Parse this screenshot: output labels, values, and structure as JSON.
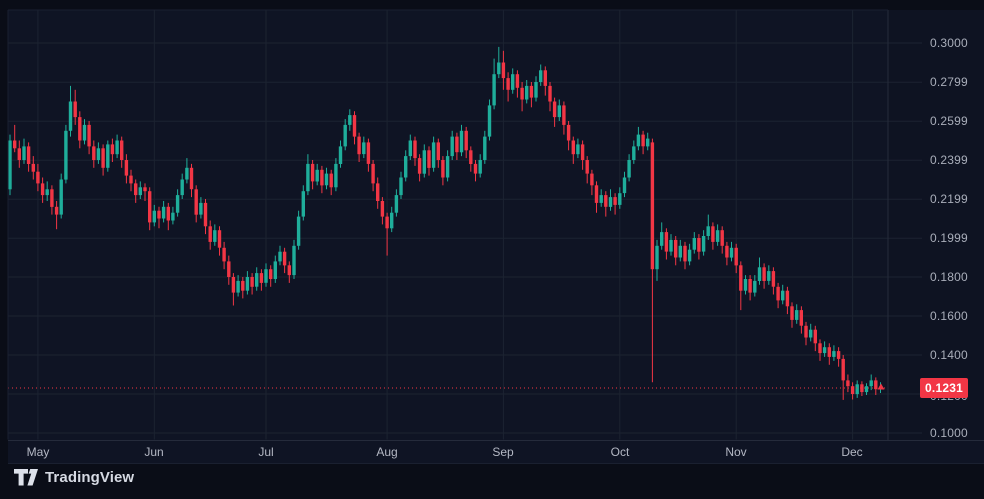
{
  "branding": {
    "logo_text": "TradingView",
    "logo_glyph": "tv-mark"
  },
  "colors": {
    "page_bg": "#0a0d17",
    "pane_bg": "#0f1424",
    "grid": "#1c2331",
    "border": "#252b3b",
    "axis_text": "#a9aeba",
    "up": "#1fae9b",
    "down": "#f23645",
    "price_line": "#f23645",
    "badge_bg": "#f23645",
    "badge_text": "#ffffff"
  },
  "price_axis": {
    "last_price_label": "0.1231",
    "labels": [
      {
        "text": "0.3000",
        "price": 0.3
      },
      {
        "text": "0.2799",
        "price": 0.2799
      },
      {
        "text": "0.2599",
        "price": 0.2599
      },
      {
        "text": "0.2399",
        "price": 0.2399
      },
      {
        "text": "0.2199",
        "price": 0.2199
      },
      {
        "text": "0.1999",
        "price": 0.1999
      },
      {
        "text": "0.1800",
        "price": 0.18
      },
      {
        "text": "0.1600",
        "price": 0.16
      },
      {
        "text": "0.1400",
        "price": 0.14
      },
      {
        "text": "0.1200",
        "price": 0.12
      },
      {
        "text": "0.1000",
        "price": 0.1
      }
    ]
  },
  "time_axis": {
    "months": [
      {
        "label": "May",
        "candle_index": 6
      },
      {
        "label": "Jun",
        "candle_index": 31
      },
      {
        "label": "Jul",
        "candle_index": 55
      },
      {
        "label": "Aug",
        "candle_index": 81
      },
      {
        "label": "Sep",
        "candle_index": 106
      },
      {
        "label": "Oct",
        "candle_index": 131
      },
      {
        "label": "Nov",
        "candle_index": 156
      },
      {
        "label": "Dec",
        "candle_index": 181
      }
    ]
  },
  "chart_data": {
    "type": "candlestick",
    "title": "",
    "ylabel": "price",
    "price_range": [
      0.1,
      0.3
    ],
    "grid": true,
    "legend_position": "none",
    "last_price": 0.1231,
    "candles_format": [
      "open",
      "high",
      "low",
      "close"
    ],
    "candles": [
      [
        0.225,
        0.253,
        0.222,
        0.25
      ],
      [
        0.25,
        0.258,
        0.244,
        0.246
      ],
      [
        0.246,
        0.25,
        0.236,
        0.24
      ],
      [
        0.24,
        0.251,
        0.238,
        0.247
      ],
      [
        0.247,
        0.249,
        0.234,
        0.238
      ],
      [
        0.238,
        0.242,
        0.23,
        0.234
      ],
      [
        0.234,
        0.238,
        0.224,
        0.228
      ],
      [
        0.228,
        0.231,
        0.218,
        0.222
      ],
      [
        0.222,
        0.229,
        0.219,
        0.225
      ],
      [
        0.225,
        0.227,
        0.212,
        0.216
      ],
      [
        0.216,
        0.219,
        0.2045,
        0.212
      ],
      [
        0.212,
        0.233,
        0.21,
        0.23
      ],
      [
        0.23,
        0.258,
        0.228,
        0.255
      ],
      [
        0.255,
        0.278,
        0.252,
        0.27
      ],
      [
        0.27,
        0.276,
        0.258,
        0.262
      ],
      [
        0.262,
        0.265,
        0.246,
        0.25
      ],
      [
        0.25,
        0.261,
        0.248,
        0.258
      ],
      [
        0.258,
        0.26,
        0.243,
        0.247
      ],
      [
        0.247,
        0.25,
        0.236,
        0.24
      ],
      [
        0.24,
        0.249,
        0.238,
        0.246
      ],
      [
        0.246,
        0.248,
        0.232,
        0.236
      ],
      [
        0.236,
        0.25,
        0.234,
        0.248
      ],
      [
        0.248,
        0.251,
        0.239,
        0.243
      ],
      [
        0.243,
        0.253,
        0.241,
        0.25
      ],
      [
        0.25,
        0.252,
        0.236,
        0.24
      ],
      [
        0.24,
        0.243,
        0.228,
        0.232
      ],
      [
        0.232,
        0.235,
        0.224,
        0.228
      ],
      [
        0.228,
        0.23,
        0.218,
        0.222
      ],
      [
        0.222,
        0.229,
        0.22,
        0.226
      ],
      [
        0.226,
        0.228,
        0.219,
        0.224
      ],
      [
        0.224,
        0.226,
        0.204,
        0.208
      ],
      [
        0.208,
        0.217,
        0.206,
        0.214
      ],
      [
        0.214,
        0.216,
        0.205,
        0.21
      ],
      [
        0.21,
        0.219,
        0.208,
        0.216
      ],
      [
        0.216,
        0.218,
        0.204,
        0.209
      ],
      [
        0.209,
        0.216,
        0.207,
        0.213
      ],
      [
        0.213,
        0.225,
        0.211,
        0.222
      ],
      [
        0.222,
        0.233,
        0.22,
        0.23
      ],
      [
        0.23,
        0.241,
        0.228,
        0.236
      ],
      [
        0.236,
        0.238,
        0.221,
        0.225
      ],
      [
        0.225,
        0.227,
        0.208,
        0.212
      ],
      [
        0.212,
        0.221,
        0.21,
        0.218
      ],
      [
        0.218,
        0.22,
        0.202,
        0.206
      ],
      [
        0.206,
        0.209,
        0.194,
        0.198
      ],
      [
        0.198,
        0.207,
        0.196,
        0.204
      ],
      [
        0.204,
        0.206,
        0.191,
        0.195
      ],
      [
        0.195,
        0.198,
        0.184,
        0.188
      ],
      [
        0.188,
        0.191,
        0.176,
        0.18
      ],
      [
        0.18,
        0.182,
        0.1654,
        0.172
      ],
      [
        0.172,
        0.181,
        0.17,
        0.178
      ],
      [
        0.178,
        0.18,
        0.169,
        0.173
      ],
      [
        0.173,
        0.183,
        0.171,
        0.18
      ],
      [
        0.18,
        0.182,
        0.171,
        0.175
      ],
      [
        0.175,
        0.185,
        0.173,
        0.182
      ],
      [
        0.182,
        0.184,
        0.173,
        0.177
      ],
      [
        0.177,
        0.187,
        0.175,
        0.184
      ],
      [
        0.184,
        0.186,
        0.175,
        0.179
      ],
      [
        0.179,
        0.191,
        0.177,
        0.188
      ],
      [
        0.188,
        0.196,
        0.186,
        0.193
      ],
      [
        0.193,
        0.195,
        0.182,
        0.186
      ],
      [
        0.186,
        0.188,
        0.177,
        0.181
      ],
      [
        0.181,
        0.199,
        0.179,
        0.196
      ],
      [
        0.196,
        0.214,
        0.194,
        0.211
      ],
      [
        0.211,
        0.227,
        0.209,
        0.224
      ],
      [
        0.224,
        0.243,
        0.222,
        0.238
      ],
      [
        0.238,
        0.24,
        0.225,
        0.229
      ],
      [
        0.229,
        0.238,
        0.227,
        0.235
      ],
      [
        0.235,
        0.237,
        0.223,
        0.227
      ],
      [
        0.227,
        0.236,
        0.225,
        0.233
      ],
      [
        0.233,
        0.235,
        0.222,
        0.226
      ],
      [
        0.226,
        0.241,
        0.224,
        0.238
      ],
      [
        0.238,
        0.25,
        0.236,
        0.247
      ],
      [
        0.247,
        0.261,
        0.245,
        0.258
      ],
      [
        0.258,
        0.266,
        0.255,
        0.263
      ],
      [
        0.263,
        0.265,
        0.248,
        0.252
      ],
      [
        0.252,
        0.254,
        0.239,
        0.243
      ],
      [
        0.243,
        0.252,
        0.241,
        0.249
      ],
      [
        0.249,
        0.251,
        0.234,
        0.238
      ],
      [
        0.238,
        0.24,
        0.224,
        0.228
      ],
      [
        0.228,
        0.231,
        0.215,
        0.219
      ],
      [
        0.219,
        0.221,
        0.207,
        0.211
      ],
      [
        0.211,
        0.213,
        0.191,
        0.205
      ],
      [
        0.205,
        0.216,
        0.203,
        0.213
      ],
      [
        0.213,
        0.225,
        0.211,
        0.222
      ],
      [
        0.222,
        0.234,
        0.22,
        0.231
      ],
      [
        0.231,
        0.245,
        0.229,
        0.242
      ],
      [
        0.242,
        0.253,
        0.24,
        0.25
      ],
      [
        0.25,
        0.252,
        0.237,
        0.241
      ],
      [
        0.241,
        0.243,
        0.229,
        0.233
      ],
      [
        0.233,
        0.248,
        0.231,
        0.245
      ],
      [
        0.245,
        0.247,
        0.232,
        0.236
      ],
      [
        0.236,
        0.252,
        0.234,
        0.249
      ],
      [
        0.249,
        0.251,
        0.236,
        0.24
      ],
      [
        0.24,
        0.242,
        0.227,
        0.231
      ],
      [
        0.231,
        0.245,
        0.229,
        0.242
      ],
      [
        0.242,
        0.255,
        0.24,
        0.252
      ],
      [
        0.252,
        0.254,
        0.24,
        0.244
      ],
      [
        0.244,
        0.258,
        0.242,
        0.255
      ],
      [
        0.255,
        0.257,
        0.241,
        0.245
      ],
      [
        0.245,
        0.247,
        0.234,
        0.238
      ],
      [
        0.238,
        0.24,
        0.229,
        0.233
      ],
      [
        0.233,
        0.243,
        0.231,
        0.24
      ],
      [
        0.24,
        0.255,
        0.238,
        0.252
      ],
      [
        0.252,
        0.271,
        0.25,
        0.268
      ],
      [
        0.268,
        0.292,
        0.266,
        0.284
      ],
      [
        0.284,
        0.298,
        0.282,
        0.29
      ],
      [
        0.29,
        0.296,
        0.276,
        0.282
      ],
      [
        0.282,
        0.285,
        0.27,
        0.276
      ],
      [
        0.276,
        0.287,
        0.274,
        0.284
      ],
      [
        0.284,
        0.286,
        0.272,
        0.277
      ],
      [
        0.277,
        0.28,
        0.265,
        0.271
      ],
      [
        0.271,
        0.281,
        0.269,
        0.278
      ],
      [
        0.278,
        0.28,
        0.267,
        0.272
      ],
      [
        0.272,
        0.283,
        0.27,
        0.28
      ],
      [
        0.28,
        0.289,
        0.278,
        0.286
      ],
      [
        0.286,
        0.288,
        0.273,
        0.278
      ],
      [
        0.278,
        0.28,
        0.265,
        0.27
      ],
      [
        0.27,
        0.272,
        0.257,
        0.262
      ],
      [
        0.262,
        0.271,
        0.26,
        0.268
      ],
      [
        0.268,
        0.27,
        0.253,
        0.258
      ],
      [
        0.258,
        0.26,
        0.245,
        0.25
      ],
      [
        0.25,
        0.252,
        0.238,
        0.243
      ],
      [
        0.243,
        0.251,
        0.241,
        0.248
      ],
      [
        0.248,
        0.25,
        0.235,
        0.24
      ],
      [
        0.24,
        0.242,
        0.228,
        0.233
      ],
      [
        0.233,
        0.235,
        0.222,
        0.227
      ],
      [
        0.227,
        0.229,
        0.213,
        0.218
      ],
      [
        0.218,
        0.225,
        0.216,
        0.222
      ],
      [
        0.222,
        0.224,
        0.211,
        0.216
      ],
      [
        0.216,
        0.225,
        0.214,
        0.221
      ],
      [
        0.221,
        0.223,
        0.212,
        0.217
      ],
      [
        0.217,
        0.226,
        0.215,
        0.223
      ],
      [
        0.223,
        0.234,
        0.221,
        0.231
      ],
      [
        0.231,
        0.243,
        0.229,
        0.24
      ],
      [
        0.24,
        0.25,
        0.238,
        0.247
      ],
      [
        0.247,
        0.257,
        0.245,
        0.253
      ],
      [
        0.253,
        0.255,
        0.243,
        0.247
      ],
      [
        0.247,
        0.254,
        0.245,
        0.251
      ],
      [
        0.249,
        0.251,
        0.126,
        0.184
      ],
      [
        0.184,
        0.199,
        0.178,
        0.196
      ],
      [
        0.196,
        0.208,
        0.194,
        0.203
      ],
      [
        0.203,
        0.205,
        0.189,
        0.193
      ],
      [
        0.193,
        0.202,
        0.191,
        0.199
      ],
      [
        0.199,
        0.201,
        0.186,
        0.19
      ],
      [
        0.19,
        0.199,
        0.188,
        0.196
      ],
      [
        0.196,
        0.198,
        0.184,
        0.188
      ],
      [
        0.188,
        0.197,
        0.186,
        0.194
      ],
      [
        0.194,
        0.203,
        0.192,
        0.2
      ],
      [
        0.2,
        0.202,
        0.189,
        0.193
      ],
      [
        0.193,
        0.204,
        0.191,
        0.201
      ],
      [
        0.201,
        0.212,
        0.199,
        0.206
      ],
      [
        0.206,
        0.208,
        0.194,
        0.198
      ],
      [
        0.198,
        0.207,
        0.196,
        0.204
      ],
      [
        0.204,
        0.206,
        0.192,
        0.196
      ],
      [
        0.196,
        0.198,
        0.186,
        0.19
      ],
      [
        0.19,
        0.198,
        0.188,
        0.195
      ],
      [
        0.195,
        0.197,
        0.182,
        0.186
      ],
      [
        0.186,
        0.188,
        0.163,
        0.173
      ],
      [
        0.173,
        0.181,
        0.171,
        0.179
      ],
      [
        0.179,
        0.181,
        0.168,
        0.172
      ],
      [
        0.172,
        0.181,
        0.17,
        0.178
      ],
      [
        0.178,
        0.19,
        0.176,
        0.185
      ],
      [
        0.185,
        0.187,
        0.174,
        0.178
      ],
      [
        0.178,
        0.186,
        0.176,
        0.183
      ],
      [
        0.183,
        0.185,
        0.171,
        0.175
      ],
      [
        0.175,
        0.177,
        0.164,
        0.168
      ],
      [
        0.168,
        0.176,
        0.166,
        0.173
      ],
      [
        0.173,
        0.175,
        0.161,
        0.165
      ],
      [
        0.165,
        0.167,
        0.154,
        0.158
      ],
      [
        0.158,
        0.166,
        0.156,
        0.163
      ],
      [
        0.163,
        0.165,
        0.151,
        0.155
      ],
      [
        0.155,
        0.157,
        0.145,
        0.149
      ],
      [
        0.149,
        0.156,
        0.147,
        0.153
      ],
      [
        0.153,
        0.155,
        0.142,
        0.146
      ],
      [
        0.146,
        0.148,
        0.137,
        0.141
      ],
      [
        0.141,
        0.147,
        0.139,
        0.144
      ],
      [
        0.144,
        0.146,
        0.135,
        0.139
      ],
      [
        0.139,
        0.145,
        0.137,
        0.142
      ],
      [
        0.142,
        0.144,
        0.134,
        0.138
      ],
      [
        0.138,
        0.14,
        0.117,
        0.127
      ],
      [
        0.127,
        0.13,
        0.121,
        0.124
      ],
      [
        0.124,
        0.126,
        0.1172,
        0.12
      ],
      [
        0.12,
        0.127,
        0.118,
        0.125
      ],
      [
        0.125,
        0.1265,
        0.119,
        0.121
      ],
      [
        0.121,
        0.1255,
        0.1195,
        0.124
      ],
      [
        0.124,
        0.13,
        0.122,
        0.127
      ],
      [
        0.127,
        0.1285,
        0.1195,
        0.1225
      ],
      [
        0.1225,
        0.126,
        0.1205,
        0.1231
      ]
    ]
  }
}
